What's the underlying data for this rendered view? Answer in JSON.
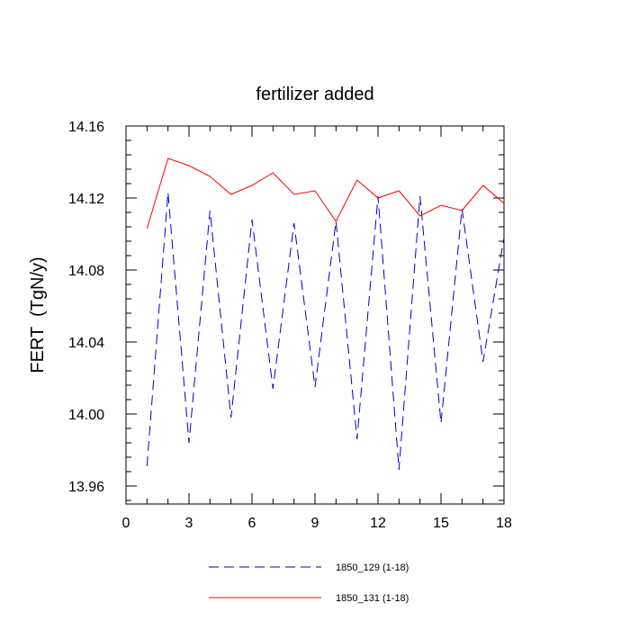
{
  "chart_data": {
    "type": "line",
    "title": "fertilizer added",
    "xlabel": "",
    "ylabel": "FERT  (TgN/y)",
    "xlim": [
      0,
      18
    ],
    "ylim": [
      13.95,
      14.16
    ],
    "xticks": [
      0,
      3,
      6,
      9,
      12,
      15,
      18
    ],
    "xtick_labels": [
      "0",
      "3",
      "6",
      "9",
      "12",
      "15",
      "18"
    ],
    "yticks": [
      13.96,
      14.0,
      14.04,
      14.08,
      14.12,
      14.16
    ],
    "ytick_labels": [
      "13.96",
      "14.00",
      "14.04",
      "14.08",
      "14.12",
      "14.16"
    ],
    "legend_position": "bottom",
    "grid": false,
    "x": [
      1,
      2,
      3,
      4,
      5,
      6,
      7,
      8,
      9,
      10,
      11,
      12,
      13,
      14,
      15,
      16,
      17,
      18
    ],
    "series": [
      {
        "name": "1850_129 (1-18)",
        "color": "#0000cc",
        "style": "dashed",
        "values": [
          13.971,
          14.123,
          13.984,
          14.113,
          13.998,
          14.108,
          14.014,
          14.106,
          14.015,
          14.107,
          13.986,
          14.121,
          13.969,
          14.121,
          13.995,
          14.114,
          14.029,
          14.098
        ]
      },
      {
        "name": "1850_131 (1-18)",
        "color": "#ff0000",
        "style": "solid",
        "values": [
          14.103,
          14.142,
          14.138,
          14.132,
          14.122,
          14.127,
          14.134,
          14.122,
          14.124,
          14.107,
          14.13,
          14.12,
          14.124,
          14.11,
          14.116,
          14.113,
          14.127,
          14.117
        ]
      }
    ]
  }
}
